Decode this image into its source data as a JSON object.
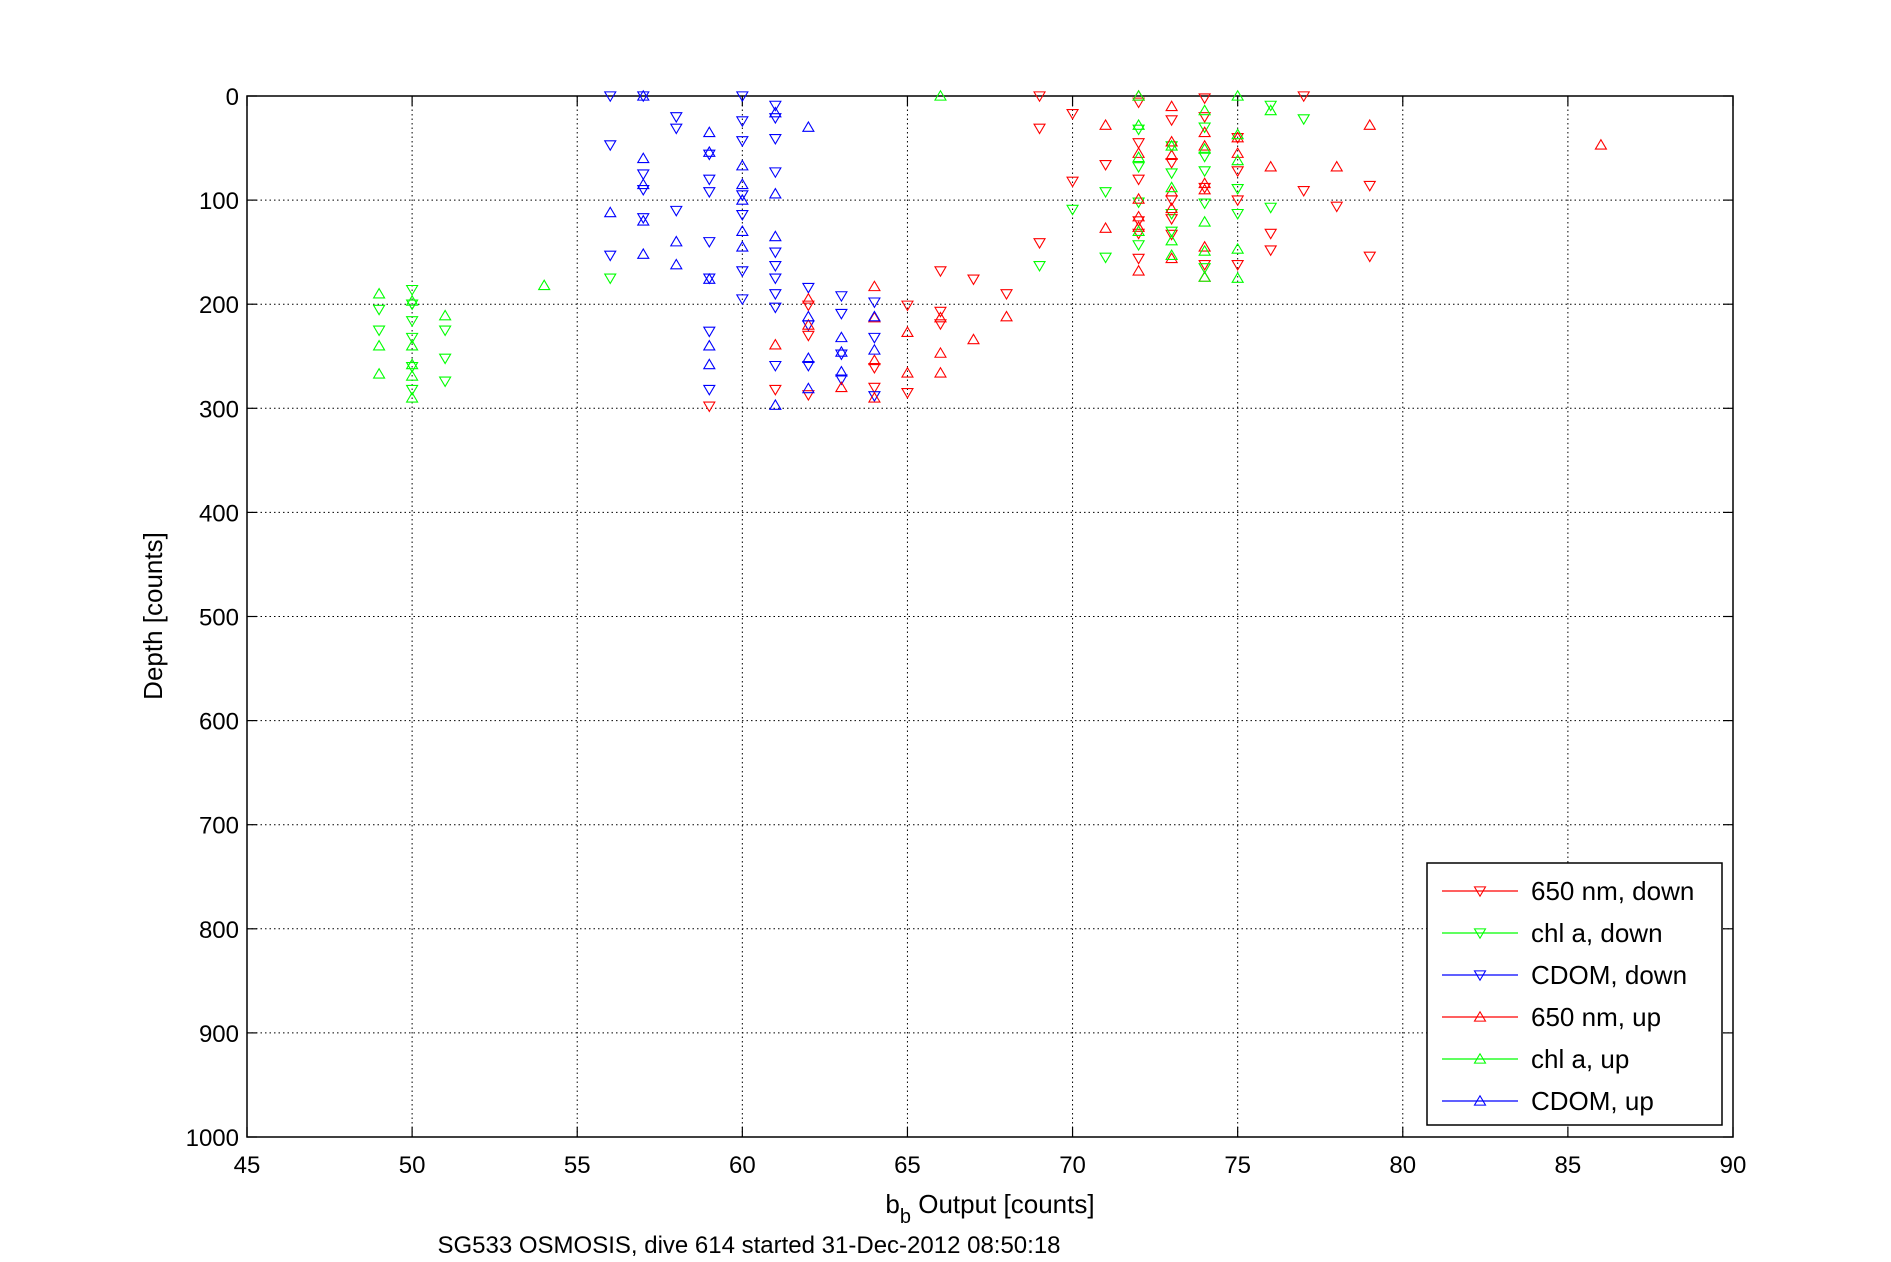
{
  "chart_data": {
    "type": "scatter",
    "title": "",
    "xlabel_base": "b",
    "xlabel_sub": "b",
    "xlabel_rest": " Output [counts]",
    "ylabel": "Depth [counts]",
    "xlim": [
      45,
      90
    ],
    "ylim": [
      0,
      1000
    ],
    "y_reversed": true,
    "xticks": [
      45,
      50,
      55,
      60,
      65,
      70,
      75,
      80,
      85,
      90
    ],
    "yticks": [
      0,
      100,
      200,
      300,
      400,
      500,
      600,
      700,
      800,
      900,
      1000
    ],
    "grid": true,
    "legend_position": "bottom-right",
    "caption": "SG533 OSMOSIS, dive 614 started 31-Dec-2012 08:50:18",
    "series": [
      {
        "name": "650 nm, down",
        "color": "#ff0000",
        "marker": "triangle-down",
        "points": [
          [
            69,
            0
          ],
          [
            77,
            0
          ],
          [
            69,
            31
          ],
          [
            70,
            17
          ],
          [
            70,
            82
          ],
          [
            71,
            66
          ],
          [
            72,
            45
          ],
          [
            72,
            80
          ],
          [
            72,
            120
          ],
          [
            72,
            132
          ],
          [
            72,
            156
          ],
          [
            72,
            6
          ],
          [
            73,
            23
          ],
          [
            73,
            64
          ],
          [
            73,
            100
          ],
          [
            73,
            118
          ],
          [
            73,
            133
          ],
          [
            74,
            2
          ],
          [
            74,
            20
          ],
          [
            74,
            88
          ],
          [
            74,
            162
          ],
          [
            75,
            40
          ],
          [
            75,
            72
          ],
          [
            75,
            100
          ],
          [
            75,
            162
          ],
          [
            76,
            132
          ],
          [
            76,
            148
          ],
          [
            77,
            91
          ],
          [
            78,
            106
          ],
          [
            79,
            86
          ],
          [
            79,
            154
          ],
          [
            69,
            141
          ],
          [
            68,
            190
          ],
          [
            67,
            176
          ],
          [
            66,
            168
          ],
          [
            65,
            201
          ],
          [
            66,
            207
          ],
          [
            66,
            219
          ],
          [
            62,
            201
          ],
          [
            62,
            230
          ],
          [
            62,
            287
          ],
          [
            61,
            282
          ],
          [
            64,
            261
          ],
          [
            64,
            280
          ],
          [
            59,
            298
          ],
          [
            65,
            285
          ]
        ]
      },
      {
        "name": "chl a, down",
        "color": "#00ff00",
        "marker": "triangle-down",
        "points": [
          [
            71,
            92
          ],
          [
            71,
            155
          ],
          [
            70,
            109
          ],
          [
            69,
            163
          ],
          [
            72,
            32
          ],
          [
            72,
            68
          ],
          [
            72,
            102
          ],
          [
            72,
            143
          ],
          [
            73,
            48
          ],
          [
            73,
            74
          ],
          [
            73,
            113
          ],
          [
            73,
            130
          ],
          [
            74,
            30
          ],
          [
            74,
            72
          ],
          [
            74,
            103
          ],
          [
            74,
            165
          ],
          [
            75,
            89
          ],
          [
            75,
            113
          ],
          [
            76,
            9
          ],
          [
            76,
            107
          ],
          [
            77,
            22
          ],
          [
            74,
            58
          ],
          [
            56,
            175
          ],
          [
            49,
            205
          ],
          [
            49,
            225
          ],
          [
            50,
            186
          ],
          [
            50,
            200
          ],
          [
            50,
            216
          ],
          [
            50,
            232
          ],
          [
            50,
            260
          ],
          [
            50,
            282
          ],
          [
            51,
            225
          ],
          [
            51,
            252
          ],
          [
            51,
            274
          ]
        ]
      },
      {
        "name": "CDOM, down",
        "color": "#0000ff",
        "marker": "triangle-down",
        "points": [
          [
            56,
            0
          ],
          [
            57,
            0
          ],
          [
            58,
            20
          ],
          [
            58,
            31
          ],
          [
            56,
            47
          ],
          [
            59,
            56
          ],
          [
            60,
            24
          ],
          [
            60,
            43
          ],
          [
            60,
            0
          ],
          [
            61,
            9
          ],
          [
            61,
            21
          ],
          [
            61,
            41
          ],
          [
            61,
            73
          ],
          [
            57,
            75
          ],
          [
            57,
            90
          ],
          [
            57,
            117
          ],
          [
            58,
            110
          ],
          [
            59,
            80
          ],
          [
            59,
            92
          ],
          [
            60,
            95
          ],
          [
            60,
            114
          ],
          [
            59,
            140
          ],
          [
            56,
            153
          ],
          [
            60,
            168
          ],
          [
            60,
            195
          ],
          [
            61,
            150
          ],
          [
            61,
            163
          ],
          [
            61,
            175
          ],
          [
            61,
            190
          ],
          [
            61,
            203
          ],
          [
            59,
            175
          ],
          [
            59,
            226
          ],
          [
            59,
            282
          ],
          [
            62,
            184
          ],
          [
            62,
            220
          ],
          [
            62,
            259
          ],
          [
            63,
            192
          ],
          [
            63,
            209
          ],
          [
            63,
            248
          ],
          [
            63,
            272
          ],
          [
            64,
            198
          ],
          [
            64,
            232
          ],
          [
            64,
            288
          ],
          [
            61,
            259
          ]
        ]
      },
      {
        "name": "650 nm, up",
        "color": "#ff0000",
        "marker": "triangle-up",
        "points": [
          [
            86,
            47
          ],
          [
            79,
            28
          ],
          [
            78,
            68
          ],
          [
            76,
            68
          ],
          [
            75,
            55
          ],
          [
            75,
            40
          ],
          [
            74,
            35
          ],
          [
            74,
            48
          ],
          [
            74,
            84
          ],
          [
            74,
            145
          ],
          [
            74,
            174
          ],
          [
            73,
            10
          ],
          [
            73,
            44
          ],
          [
            73,
            57
          ],
          [
            73,
            92
          ],
          [
            73,
            108
          ],
          [
            72,
            99
          ],
          [
            72,
            126
          ],
          [
            72,
            168
          ],
          [
            72,
            0
          ],
          [
            71,
            28
          ],
          [
            71,
            127
          ],
          [
            72,
            55
          ],
          [
            72,
            116
          ],
          [
            73,
            156
          ],
          [
            74,
            90
          ],
          [
            62,
            195
          ],
          [
            62,
            220
          ],
          [
            61,
            239
          ],
          [
            64,
            183
          ],
          [
            64,
            213
          ],
          [
            64,
            254
          ],
          [
            64,
            290
          ],
          [
            65,
            227
          ],
          [
            65,
            266
          ],
          [
            66,
            213
          ],
          [
            66,
            247
          ],
          [
            66,
            266
          ],
          [
            67,
            234
          ],
          [
            68,
            212
          ],
          [
            63,
            280
          ]
        ]
      },
      {
        "name": "chl a, up",
        "color": "#00ff00",
        "marker": "triangle-up",
        "points": [
          [
            66,
            0
          ],
          [
            75,
            0
          ],
          [
            75,
            37
          ],
          [
            76,
            14
          ],
          [
            72,
            0
          ],
          [
            72,
            28
          ],
          [
            72,
            59
          ],
          [
            72,
            130
          ],
          [
            73,
            139
          ],
          [
            73,
            153
          ],
          [
            73,
            48
          ],
          [
            74,
            14
          ],
          [
            74,
            51
          ],
          [
            74,
            121
          ],
          [
            74,
            149
          ],
          [
            75,
            62
          ],
          [
            75,
            147
          ],
          [
            75,
            175
          ],
          [
            54,
            182
          ],
          [
            49,
            190
          ],
          [
            49,
            240
          ],
          [
            49,
            267
          ],
          [
            50,
            197
          ],
          [
            50,
            240
          ],
          [
            50,
            258
          ],
          [
            50,
            269
          ],
          [
            50,
            290
          ],
          [
            51,
            211
          ],
          [
            73,
            88
          ],
          [
            74,
            174
          ]
        ]
      },
      {
        "name": "CDOM, up",
        "color": "#0000ff",
        "marker": "triangle-up",
        "points": [
          [
            57,
            0
          ],
          [
            57,
            60
          ],
          [
            57,
            85
          ],
          [
            57,
            120
          ],
          [
            56,
            112
          ],
          [
            57,
            152
          ],
          [
            58,
            162
          ],
          [
            58,
            140
          ],
          [
            59,
            35
          ],
          [
            59,
            54
          ],
          [
            60,
            67
          ],
          [
            60,
            85
          ],
          [
            60,
            100
          ],
          [
            60,
            130
          ],
          [
            59,
            176
          ],
          [
            59,
            240
          ],
          [
            59,
            258
          ],
          [
            60,
            145
          ],
          [
            61,
            135
          ],
          [
            61,
            16
          ],
          [
            61,
            94
          ],
          [
            62,
            30
          ],
          [
            62,
            212
          ],
          [
            62,
            252
          ],
          [
            62,
            281
          ],
          [
            63,
            232
          ],
          [
            63,
            246
          ],
          [
            63,
            265
          ],
          [
            64,
            212
          ],
          [
            64,
            244
          ],
          [
            61,
            297
          ]
        ]
      }
    ]
  }
}
